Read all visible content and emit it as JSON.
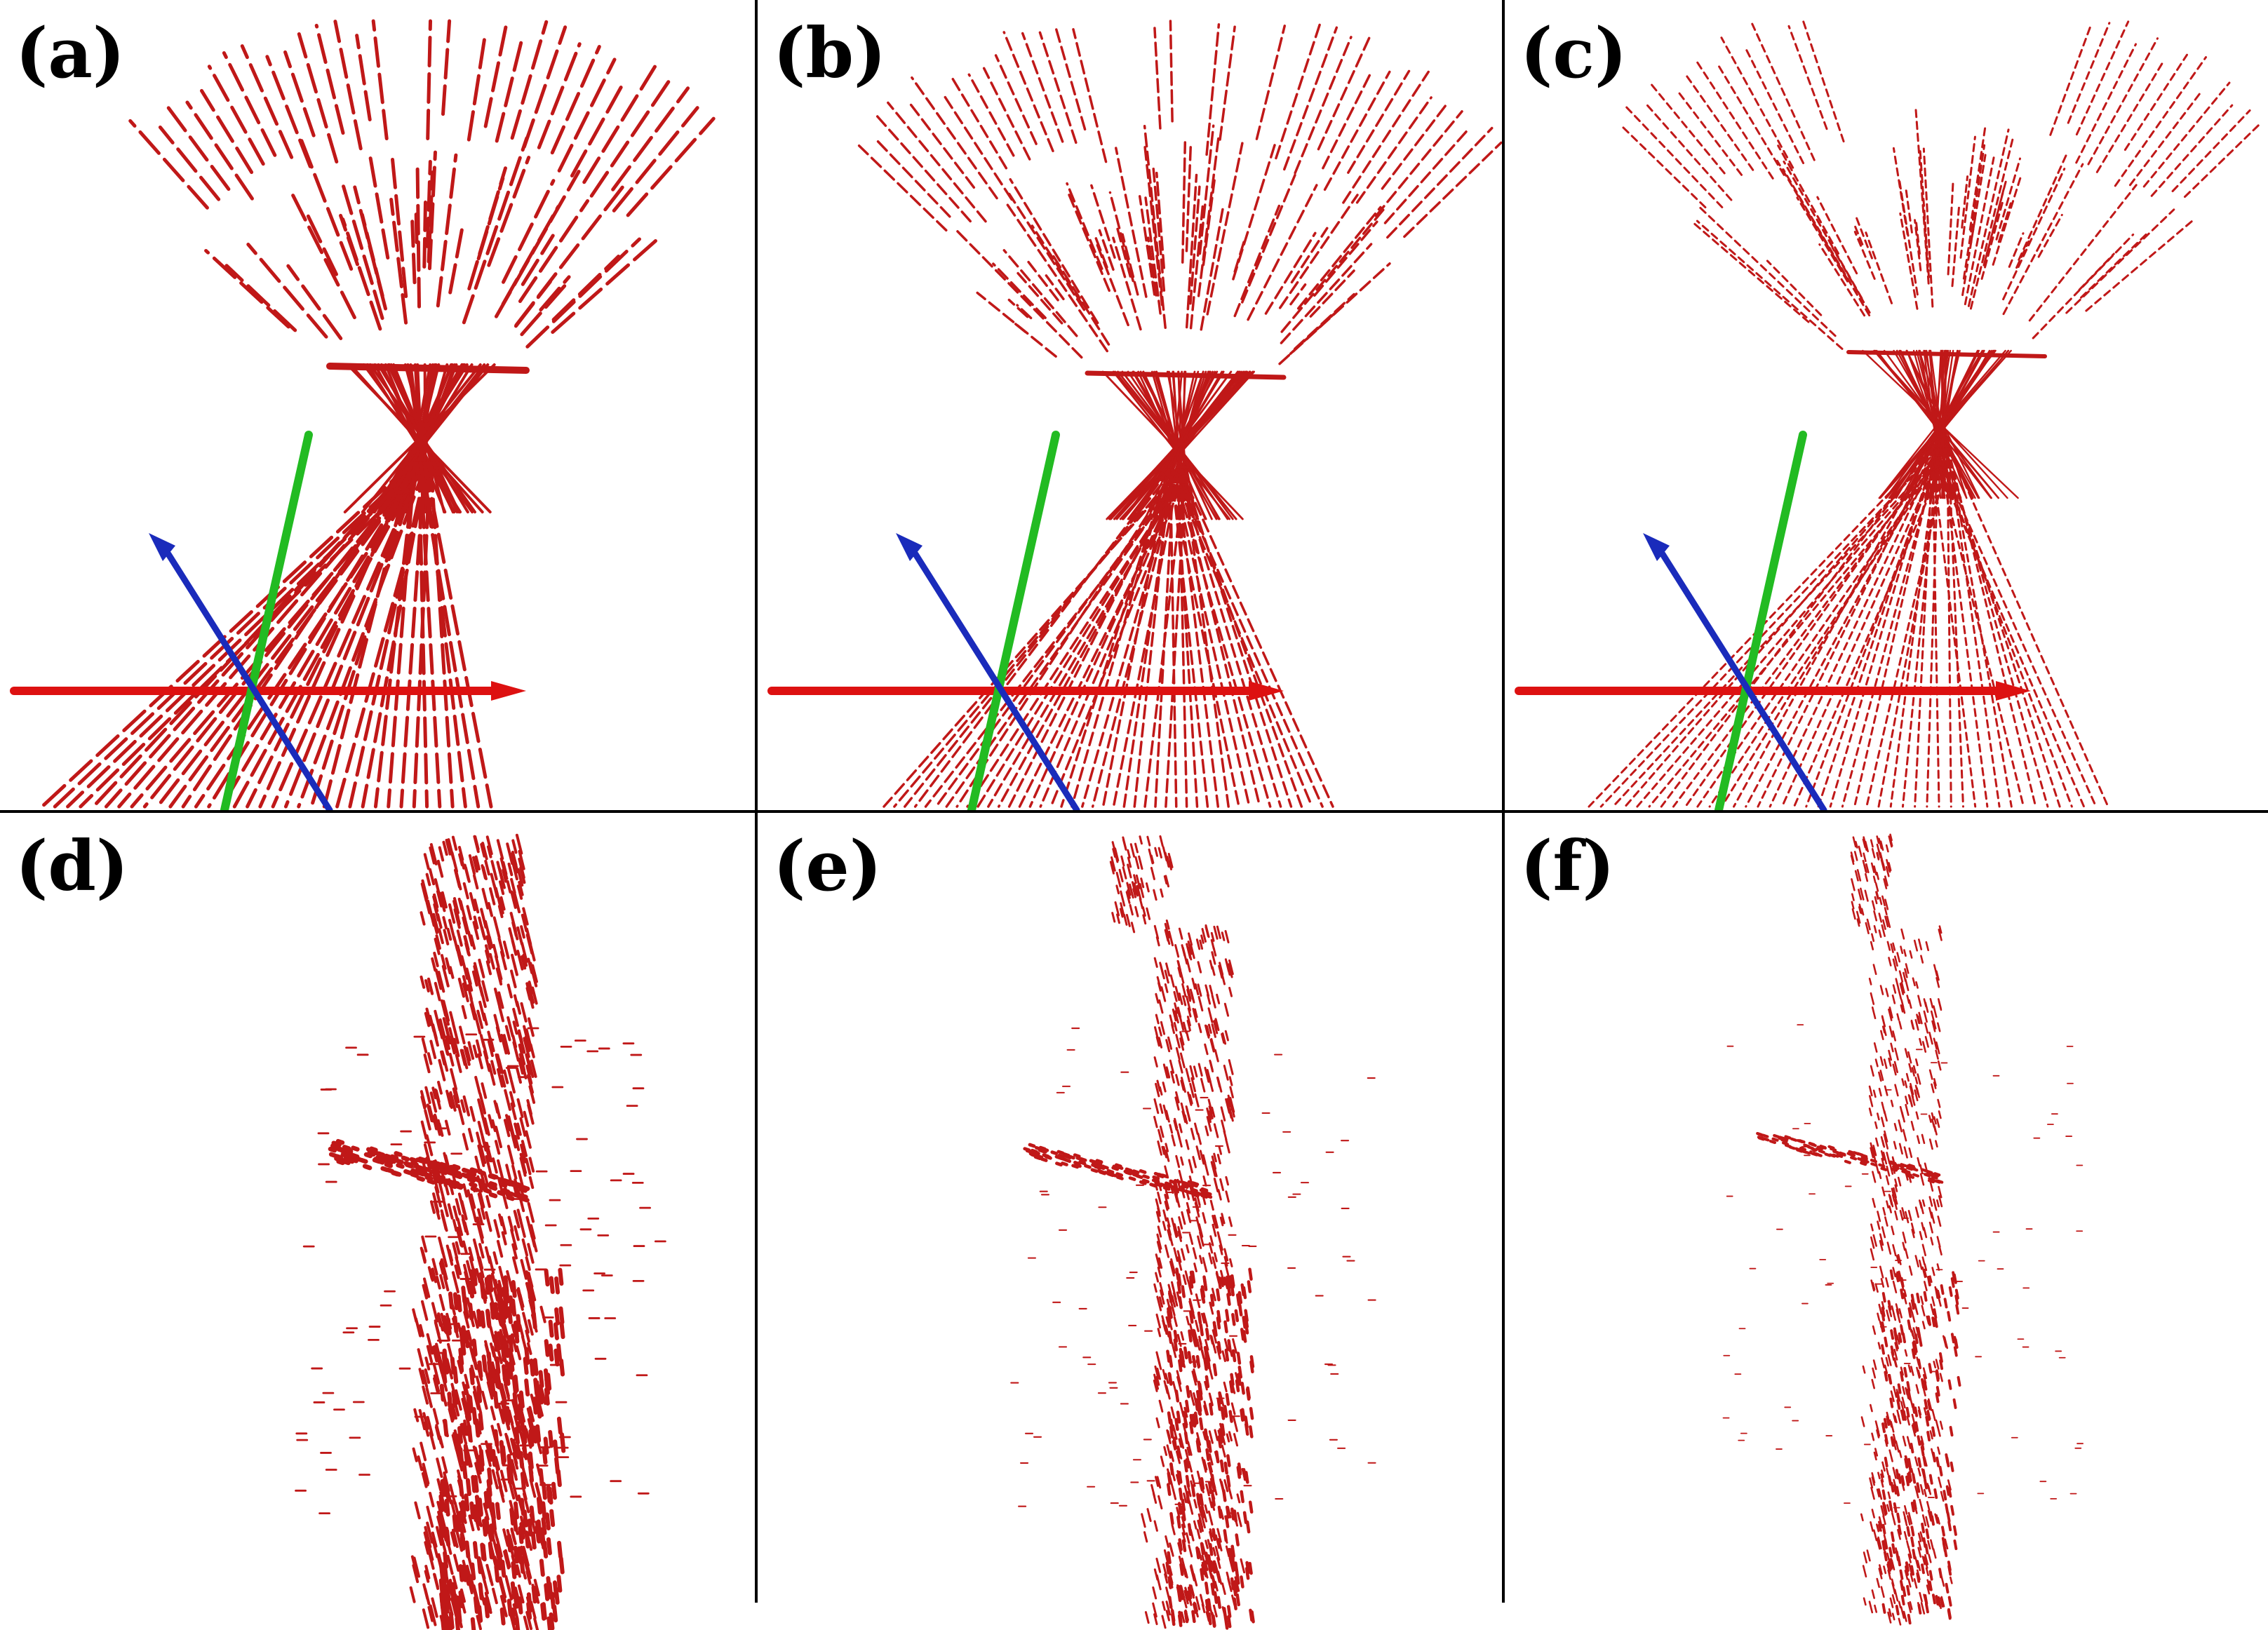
{
  "figure": {
    "background": "#ffffff",
    "point_color": "#c01818",
    "divider_color": "#000000",
    "axis_colors": {
      "x_axis": "#dd1111",
      "y_axis": "#22bb22",
      "z_axis": "#1a2bbb"
    },
    "panels": [
      {
        "id": "a",
        "label": "(a)",
        "view": "top-view point cloud with axes",
        "scan_style": "sparse-radial"
      },
      {
        "id": "b",
        "label": "(b)",
        "view": "top-view point cloud with axes",
        "scan_style": "dense-radial"
      },
      {
        "id": "c",
        "label": "(c)",
        "view": "top-view point cloud with axes",
        "scan_style": "fine-radial"
      },
      {
        "id": "d",
        "label": "(d)",
        "view": "side-view point cloud",
        "scan_style": "thick"
      },
      {
        "id": "e",
        "label": "(e)",
        "view": "side-view point cloud",
        "scan_style": "medium"
      },
      {
        "id": "f",
        "label": "(f)",
        "view": "side-view point cloud",
        "scan_style": "thin"
      }
    ]
  }
}
